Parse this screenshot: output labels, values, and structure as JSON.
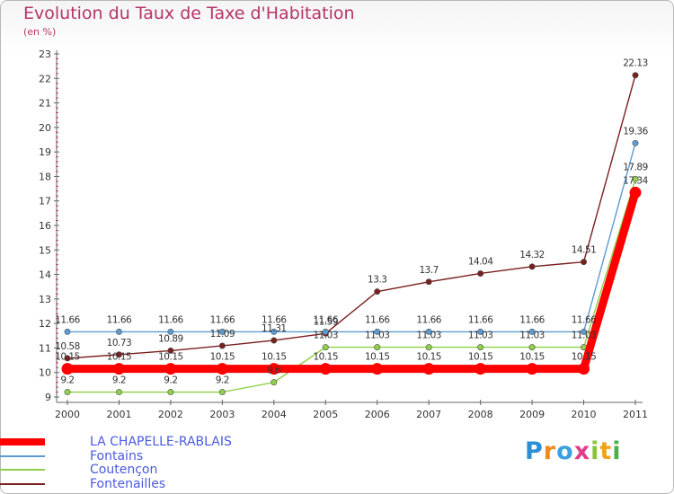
{
  "title": "Evolution du Taux de Taxe d'Habitation",
  "subtitle": "(en %)",
  "logo": "Proxiti",
  "chart_data": {
    "type": "line",
    "x": [
      "2000",
      "2001",
      "2002",
      "2003",
      "2004",
      "2005",
      "2006",
      "2007",
      "2008",
      "2009",
      "2010",
      "2011"
    ],
    "ylim": [
      9,
      23
    ],
    "yticks": [
      "9",
      "10",
      "11",
      "12",
      "13",
      "14",
      "15",
      "16",
      "17",
      "18",
      "19",
      "20",
      "21",
      "22",
      "23"
    ],
    "grid": false,
    "legend_position": "bottom-left",
    "series": [
      {
        "name": "LA CHAPELLE-RABLAIS",
        "color": "#ff0000",
        "values": [
          10.15,
          10.15,
          10.15,
          10.15,
          10.15,
          10.15,
          10.15,
          10.15,
          10.15,
          10.15,
          10.15,
          17.34
        ],
        "labels": [
          "10.15",
          "10.15",
          "10.15",
          "10.15",
          "10.15",
          "10.15",
          "10.15",
          "10.15",
          "10.15",
          "10.15",
          "10.15",
          "17.34"
        ]
      },
      {
        "name": "Fontains",
        "color": "#5c9bd1",
        "values": [
          11.66,
          11.66,
          11.66,
          11.66,
          11.66,
          11.66,
          11.66,
          11.66,
          11.66,
          11.66,
          11.66,
          19.36
        ],
        "labels": [
          "11.66",
          "11.66",
          "11.66",
          "11.66",
          "11.66",
          "11.66",
          "11.66",
          "11.66",
          "11.66",
          "11.66",
          "11.66",
          "19.36"
        ]
      },
      {
        "name": "Coutençon",
        "color": "#8fd04a",
        "values": [
          9.2,
          9.2,
          9.2,
          9.2,
          9.6,
          11.03,
          11.03,
          11.03,
          11.03,
          11.03,
          11.03,
          17.89
        ],
        "labels": [
          "9.2",
          "9.2",
          "9.2",
          "9.2",
          "9.6",
          "11.03",
          "11.03",
          "11.03",
          "11.03",
          "11.03",
          "11.03",
          "17.89"
        ]
      },
      {
        "name": "Fontenailles",
        "color": "#7a1f1f",
        "values": [
          10.58,
          10.73,
          10.89,
          11.09,
          11.31,
          11.59,
          13.3,
          13.7,
          14.04,
          14.32,
          14.51,
          22.13
        ],
        "labels": [
          "10.58",
          "10.73",
          "10.89",
          "11.09",
          "11.31",
          "11.59",
          "13.3",
          "13.7",
          "14.04",
          "14.32",
          "14.51",
          "22.13"
        ]
      }
    ]
  }
}
